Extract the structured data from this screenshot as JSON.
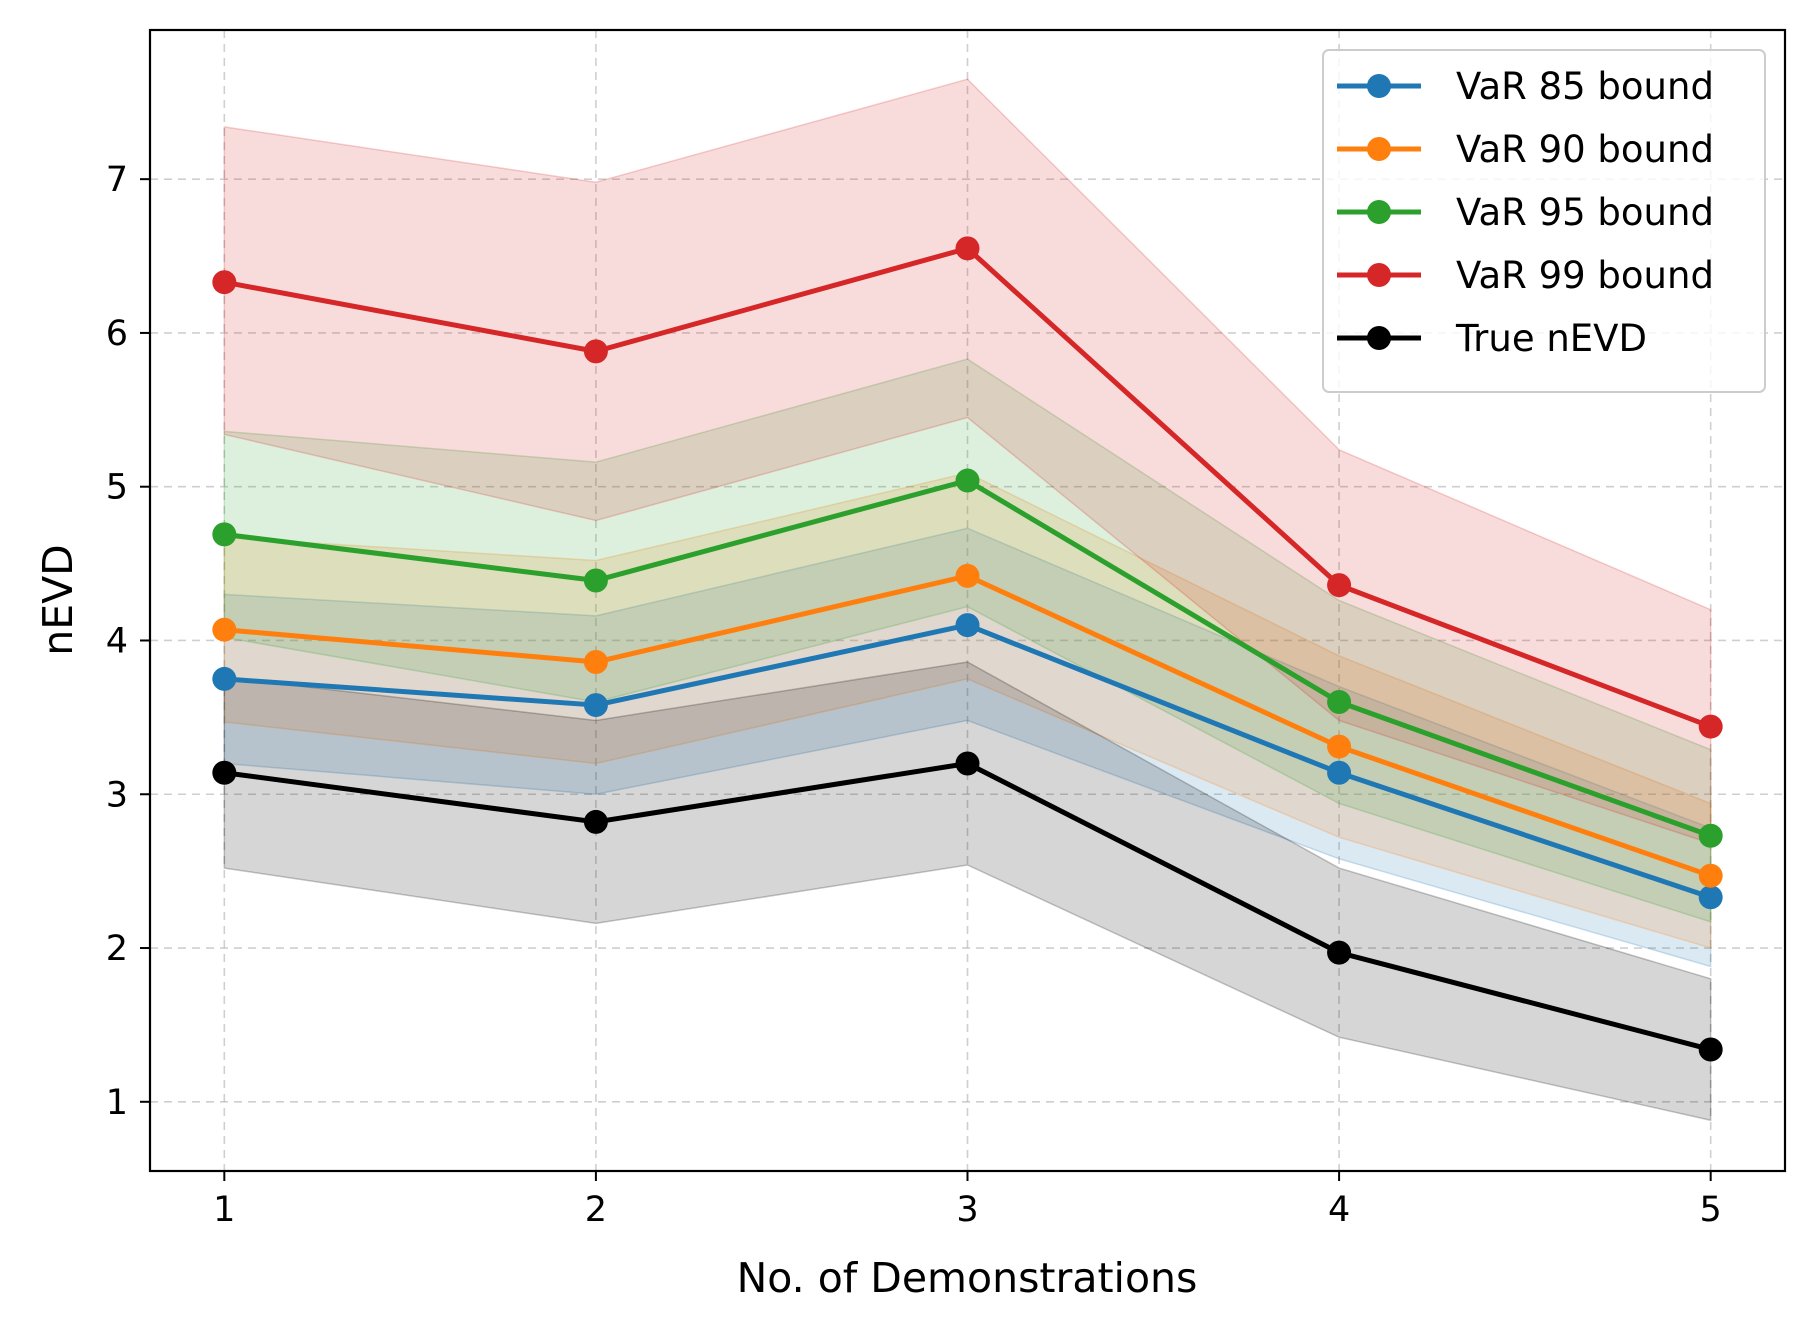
{
  "chart_data": {
    "type": "line",
    "title": "",
    "xlabel": "No. of Demonstrations",
    "ylabel": "nEVD",
    "x": [
      1,
      2,
      3,
      4,
      5
    ],
    "xticks": [
      "1",
      "2",
      "3",
      "4",
      "5"
    ],
    "yticks": [
      "1",
      "2",
      "3",
      "4",
      "5",
      "6",
      "7"
    ],
    "xlim": [
      0.8,
      5.2
    ],
    "ylim": [
      0.55,
      7.97
    ],
    "grid": true,
    "legend_position": "top-right",
    "series": [
      {
        "name": "VaR 85 bound",
        "color": "#1f77b4",
        "values": [
          3.75,
          3.58,
          4.1,
          3.14,
          2.33
        ],
        "lower": [
          3.2,
          3.0,
          3.48,
          2.58,
          1.88
        ],
        "upper": [
          4.3,
          4.16,
          4.73,
          3.7,
          2.78
        ]
      },
      {
        "name": "VaR 90 bound",
        "color": "#ff7f0e",
        "values": [
          4.07,
          3.86,
          4.42,
          3.31,
          2.47
        ],
        "lower": [
          3.47,
          3.2,
          3.75,
          2.72,
          2.0
        ],
        "upper": [
          4.67,
          4.52,
          5.09,
          3.9,
          2.94
        ]
      },
      {
        "name": "VaR 95 bound",
        "color": "#2ca02c",
        "values": [
          4.69,
          4.39,
          5.04,
          3.6,
          2.73
        ],
        "lower": [
          4.02,
          3.6,
          4.22,
          2.94,
          2.17
        ],
        "upper": [
          5.36,
          5.16,
          5.83,
          4.26,
          3.29
        ]
      },
      {
        "name": "VaR 99 bound",
        "color": "#d62728",
        "values": [
          6.33,
          5.88,
          6.55,
          4.36,
          3.44
        ],
        "lower": [
          5.34,
          4.78,
          5.45,
          3.48,
          2.68
        ],
        "upper": [
          7.34,
          6.98,
          7.65,
          5.24,
          4.2
        ]
      },
      {
        "name": "True nEVD",
        "color": "#000000",
        "values": [
          3.14,
          2.82,
          3.2,
          1.97,
          1.34
        ],
        "lower": [
          2.52,
          2.16,
          2.54,
          1.42,
          0.88
        ],
        "upper": [
          3.76,
          3.48,
          3.86,
          2.52,
          1.8
        ]
      }
    ]
  }
}
